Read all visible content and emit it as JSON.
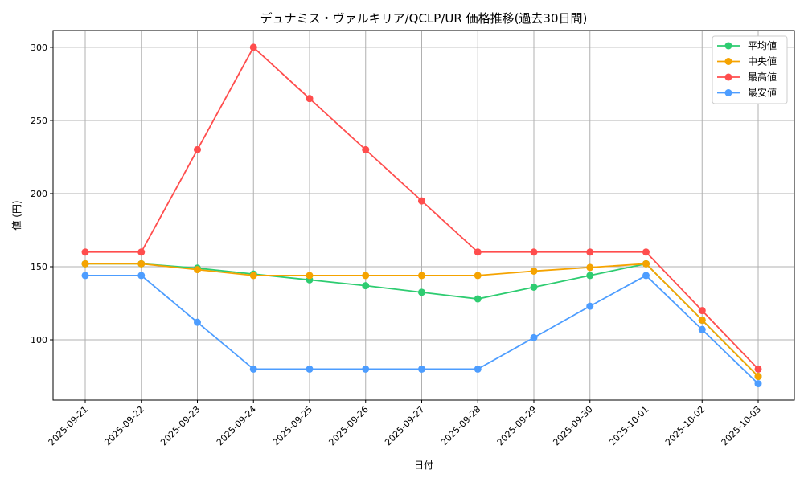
{
  "chart_data": {
    "type": "line",
    "title": "デュナミス・ヴァルキリア/QCLP/UR 価格推移(過去30日間)",
    "xlabel": "日付",
    "ylabel": "値 (円)",
    "ylim": [
      58.8,
      311.5
    ],
    "yticks": [
      100,
      150,
      200,
      250,
      300
    ],
    "grid": true,
    "legend_position": "top-right",
    "categories": [
      "2025-09-21",
      "2025-09-22",
      "2025-09-23",
      "2025-09-24",
      "2025-09-25",
      "2025-09-26",
      "2025-09-27",
      "2025-09-28",
      "2025-09-29",
      "2025-09-30",
      "2025-10-01",
      "2025-10-02",
      "2025-10-03"
    ],
    "series": [
      {
        "name": "平均値",
        "color": "#2ecc71",
        "values": [
          152,
          152,
          149,
          145,
          141,
          137,
          132.5,
          128,
          136,
          144,
          152,
          113.5,
          75
        ]
      },
      {
        "name": "中央値",
        "color": "#f5a300",
        "values": [
          152,
          152,
          148,
          144,
          144,
          144,
          144,
          144,
          147,
          149.5,
          152,
          113.5,
          75
        ]
      },
      {
        "name": "最高値",
        "color": "#ff4d4d",
        "values": [
          160,
          160,
          230,
          300,
          265,
          230,
          195,
          160,
          160,
          160,
          160,
          120,
          80
        ]
      },
      {
        "name": "最安値",
        "color": "#4d9dff",
        "values": [
          144,
          144,
          112,
          80,
          80,
          80,
          80,
          80,
          101.5,
          123,
          144,
          107,
          70
        ]
      }
    ]
  }
}
